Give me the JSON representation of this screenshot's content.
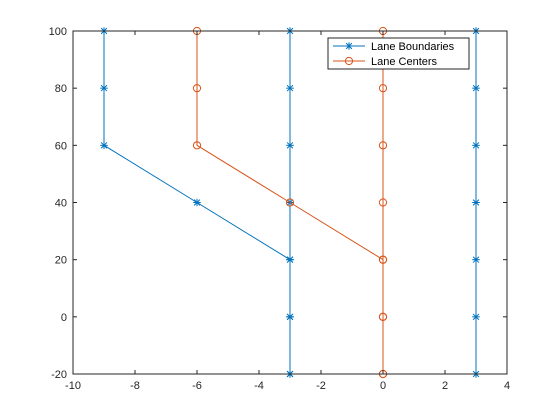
{
  "chart_data": {
    "type": "line",
    "title": "",
    "xlabel": "",
    "ylabel": "",
    "xlim": [
      -10,
      4
    ],
    "ylim": [
      -20,
      100
    ],
    "xticks": [
      -10,
      -8,
      -6,
      -4,
      -2,
      0,
      2,
      4
    ],
    "yticks": [
      -20,
      0,
      20,
      40,
      60,
      80,
      100
    ],
    "grid": false,
    "legend_position": "top-right",
    "series": [
      {
        "name": "Lane Boundaries",
        "color": "#0072BD",
        "marker": "asterisk",
        "segments": [
          [
            [
              -9,
              100
            ],
            [
              -9,
              80
            ],
            [
              -9,
              60
            ],
            [
              -6,
              40
            ],
            [
              -3,
              20
            ],
            [
              -3,
              0
            ],
            [
              -3,
              -20
            ]
          ],
          [
            [
              -3,
              100
            ],
            [
              -3,
              80
            ],
            [
              -3,
              60
            ],
            [
              -3,
              40
            ],
            [
              -3,
              20
            ],
            [
              -3,
              0
            ],
            [
              -3,
              -20
            ]
          ],
          [
            [
              3,
              100
            ],
            [
              3,
              80
            ],
            [
              3,
              60
            ],
            [
              3,
              40
            ],
            [
              3,
              20
            ],
            [
              3,
              0
            ],
            [
              3,
              -20
            ]
          ]
        ]
      },
      {
        "name": "Lane Centers",
        "color": "#D95319",
        "marker": "circle",
        "segments": [
          [
            [
              -6,
              100
            ],
            [
              -6,
              80
            ],
            [
              -6,
              60
            ],
            [
              -3,
              40
            ],
            [
              0,
              20
            ],
            [
              0,
              0
            ],
            [
              0,
              -20
            ]
          ],
          [
            [
              0,
              100
            ],
            [
              0,
              80
            ],
            [
              0,
              60
            ],
            [
              0,
              40
            ],
            [
              0,
              20
            ],
            [
              0,
              0
            ],
            [
              0,
              -20
            ]
          ]
        ]
      }
    ]
  }
}
